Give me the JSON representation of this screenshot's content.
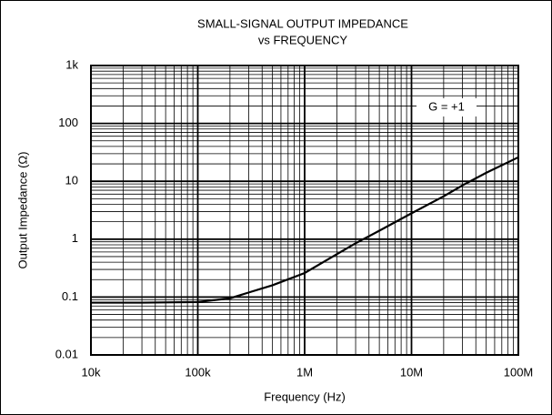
{
  "chart_data": {
    "type": "line",
    "title": [
      "SMALL-SIGNAL OUTPUT IMPEDANCE",
      "vs FREQUENCY"
    ],
    "xlabel": "Frequency (Hz)",
    "ylabel": "Output Impedance (Ω)",
    "annotation": "G = +1",
    "xscale": "log",
    "yscale": "log",
    "grid": true,
    "minor_grid": true,
    "xlim": [
      10000,
      100000000
    ],
    "xticks": [
      {
        "value": 10000,
        "label": "10k"
      },
      {
        "value": 100000,
        "label": "100k"
      },
      {
        "value": 1000000,
        "label": "1M"
      },
      {
        "value": 10000000,
        "label": "10M"
      },
      {
        "value": 100000000,
        "label": "100M"
      }
    ],
    "ylim": [
      0.01,
      1000
    ],
    "yticks": [
      0.01,
      0.1,
      1,
      10,
      100,
      {
        "value": 1000,
        "label": "1k"
      }
    ],
    "series": [
      {
        "color": "#000000",
        "x": [
          10000,
          30000,
          100000,
          200000,
          300000,
          500000,
          1000000,
          2000000,
          3000000,
          5000000,
          10000000,
          20000000,
          30000000,
          50000000,
          100000000
        ],
        "values": [
          0.08,
          0.08,
          0.082,
          0.095,
          0.12,
          0.16,
          0.26,
          0.55,
          0.85,
          1.4,
          2.8,
          5.5,
          8.5,
          14,
          26
        ]
      }
    ]
  }
}
